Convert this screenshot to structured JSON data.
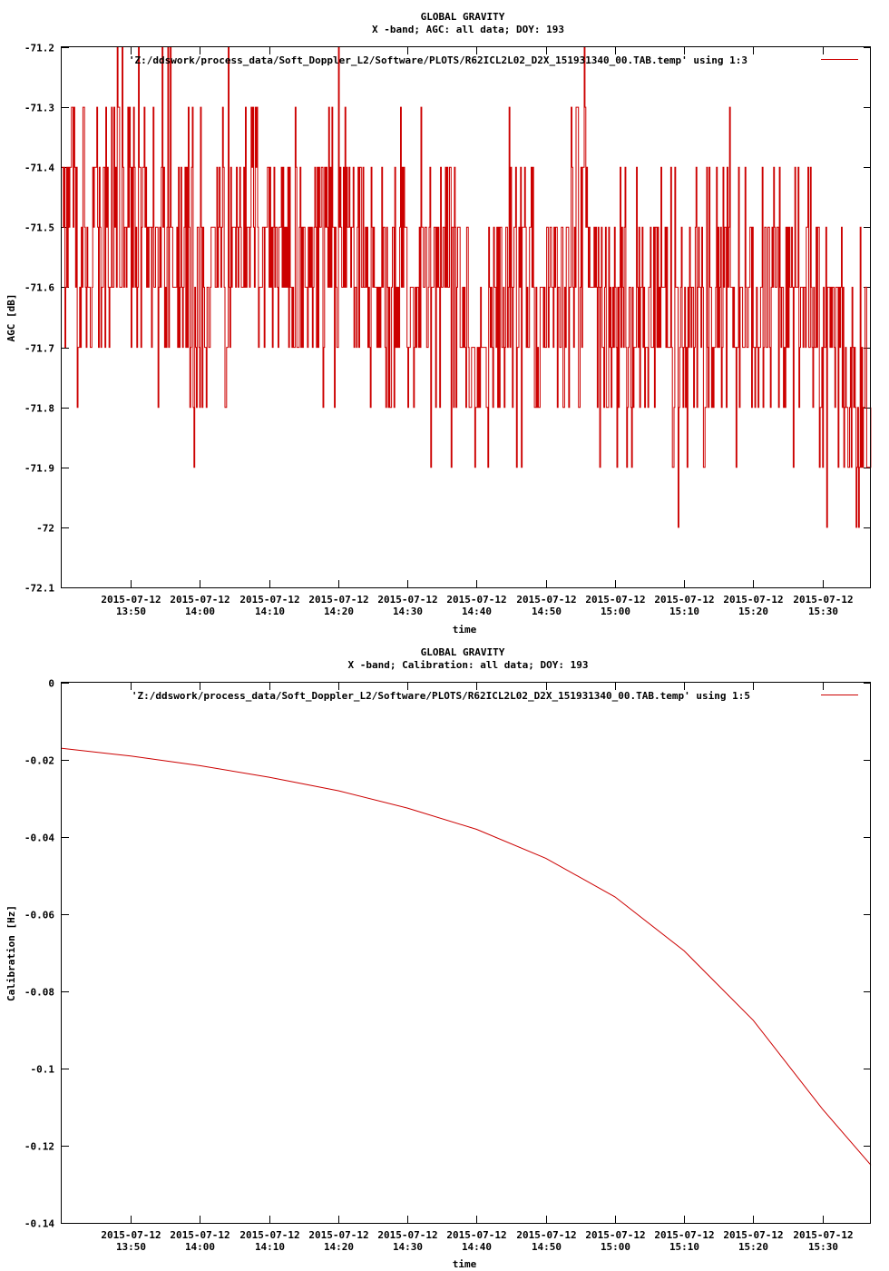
{
  "chart_data": [
    {
      "type": "line",
      "title": "GLOBAL GRAVITY",
      "subtitle": "X -band; AGC: all data; DOY: 193",
      "xlabel": "time",
      "ylabel": "AGC [dB]",
      "ylim": [
        -72.1,
        -71.2
      ],
      "yticks": [
        -71.2,
        -71.3,
        -71.4,
        -71.5,
        -71.6,
        -71.7,
        -71.8,
        -71.9,
        -72,
        -72.1
      ],
      "ytick_labels": [
        "-71.2",
        "-71.3",
        "-71.4",
        "-71.5",
        "-71.6",
        "-71.7",
        "-71.8",
        "-71.9",
        "-72",
        "-72.1"
      ],
      "xlim": [
        "2015-07-12 13:40",
        "2015-07-12 15:37"
      ],
      "xticks": [
        "13:50",
        "14:00",
        "14:10",
        "14:20",
        "14:30",
        "14:40",
        "14:50",
        "15:00",
        "15:10",
        "15:20",
        "15:30"
      ],
      "xtick_dates": [
        "2015-07-12",
        "2015-07-12",
        "2015-07-12",
        "2015-07-12",
        "2015-07-12",
        "2015-07-12",
        "2015-07-12",
        "2015-07-12",
        "2015-07-12",
        "2015-07-12",
        "2015-07-12"
      ],
      "grid": false,
      "legend_position": "top-right",
      "series": [
        {
          "name": "'Z:/ddswork/process_data/Soft_Doppler_L2/Software/PLOTS/R62ICL2L02_D2X_151931340_00.TAB.temp' using 1:3",
          "color": "#cc0000",
          "x": [
            "13:40",
            "13:45",
            "13:50",
            "13:55",
            "14:00",
            "14:05",
            "14:10",
            "14:15",
            "14:20",
            "14:25",
            "14:30",
            "14:35",
            "14:40",
            "14:45",
            "14:50",
            "14:55",
            "15:00",
            "15:05",
            "15:10",
            "15:15",
            "15:20",
            "15:25",
            "15:30",
            "15:37"
          ],
          "y": [
            -71.5,
            -71.5,
            -71.5,
            -71.5,
            -71.6,
            -71.5,
            -71.5,
            -71.6,
            -71.5,
            -71.6,
            -71.6,
            -71.6,
            -71.7,
            -71.6,
            -71.6,
            -71.5,
            -71.7,
            -71.6,
            -71.7,
            -71.6,
            -71.6,
            -71.6,
            -71.7,
            -71.8
          ]
        }
      ]
    },
    {
      "type": "line",
      "title": "GLOBAL GRAVITY",
      "subtitle": "X -band; Calibration: all data; DOY: 193",
      "xlabel": "time",
      "ylabel": "Calibration [Hz]",
      "ylim": [
        -0.14,
        0
      ],
      "yticks": [
        0,
        -0.02,
        -0.04,
        -0.06,
        -0.08,
        -0.1,
        -0.12,
        -0.14
      ],
      "ytick_labels": [
        "0",
        "-0.02",
        "-0.04",
        "-0.06",
        "-0.08",
        "-0.1",
        "-0.12",
        "-0.14"
      ],
      "xlim": [
        "2015-07-12 13:40",
        "2015-07-12 15:37"
      ],
      "xticks": [
        "13:50",
        "14:00",
        "14:10",
        "14:20",
        "14:30",
        "14:40",
        "14:50",
        "15:00",
        "15:10",
        "15:20",
        "15:30"
      ],
      "xtick_dates": [
        "2015-07-12",
        "2015-07-12",
        "2015-07-12",
        "2015-07-12",
        "2015-07-12",
        "2015-07-12",
        "2015-07-12",
        "2015-07-12",
        "2015-07-12",
        "2015-07-12",
        "2015-07-12"
      ],
      "grid": false,
      "legend_position": "top-right",
      "series": [
        {
          "name": "'Z:/ddswork/process_data/Soft_Doppler_L2/Software/PLOTS/R62ICL2L02_D2X_151931340_00.TAB.temp' using 1:5",
          "color": "#cc0000",
          "x": [
            "13:40",
            "13:50",
            "14:00",
            "14:10",
            "14:20",
            "14:30",
            "14:40",
            "14:50",
            "15:00",
            "15:10",
            "15:20",
            "15:30",
            "15:37"
          ],
          "y": [
            -0.017,
            -0.019,
            -0.0215,
            -0.0245,
            -0.028,
            -0.0325,
            -0.038,
            -0.0455,
            -0.0555,
            -0.0695,
            -0.0875,
            -0.1105,
            -0.125
          ]
        }
      ]
    }
  ]
}
